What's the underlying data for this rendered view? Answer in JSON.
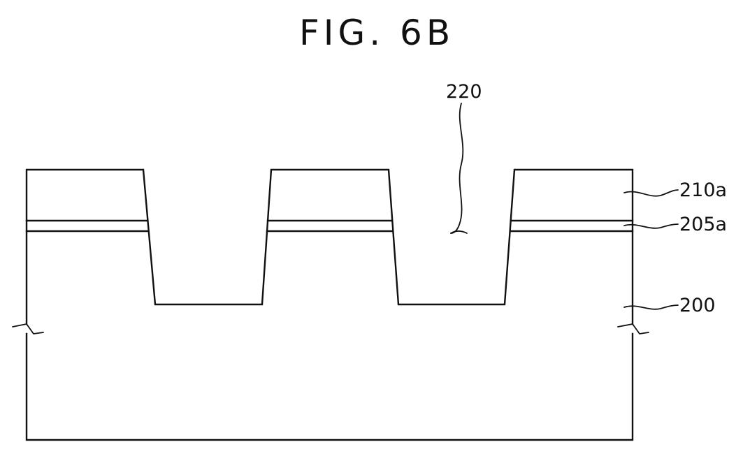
{
  "figure": {
    "title": "FIG. 6B",
    "labels": {
      "trench": "220",
      "hard_mask": "210a",
      "pad_oxide": "205a",
      "substrate": "200"
    }
  }
}
